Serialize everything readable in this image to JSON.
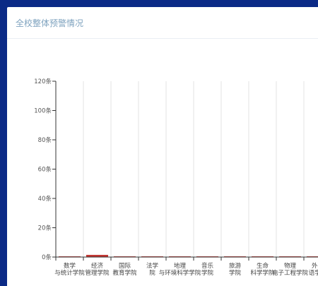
{
  "panel": {
    "title": "全校整体预警情况"
  },
  "chart_data": {
    "type": "bar",
    "title": "",
    "xlabel": "",
    "ylabel": "",
    "ylim": [
      0,
      120
    ],
    "y_ticks": [
      "0条",
      "20条",
      "40条",
      "60条",
      "80条",
      "100条",
      "120条"
    ],
    "grid": true,
    "categories": [
      [
        "数学",
        "与统计学院"
      ],
      [
        "经济",
        "管理学院"
      ],
      [
        "国际",
        "教育学院"
      ],
      [
        "法学",
        "院"
      ],
      [
        "地理",
        "与环境科学学院"
      ],
      [
        "音乐",
        "学院"
      ],
      [
        "旅游",
        "学院"
      ],
      [
        "生命",
        "科学学院"
      ],
      [
        "物理",
        "电子工程学院"
      ],
      [
        "外国",
        "语学院"
      ]
    ],
    "category_labels_rendered": [
      [
        "数学",
        "与统计学院"
      ],
      [
        "经济",
        "管理学院"
      ],
      [
        "国际",
        "教育学院"
      ],
      [
        "法学",
        "院"
      ],
      [
        "地理",
        "与环境科学学院"
      ],
      [
        "音乐",
        "学院"
      ],
      [
        "旅游",
        "学院"
      ],
      [
        "生命",
        "科学学院"
      ],
      [
        "物理",
        "电子工程学院"
      ],
      [
        "外国",
        "语学院"
      ]
    ],
    "values": [
      0,
      1,
      0,
      0,
      0,
      0,
      0,
      0,
      0,
      0
    ],
    "bar_color": "#c23531"
  }
}
